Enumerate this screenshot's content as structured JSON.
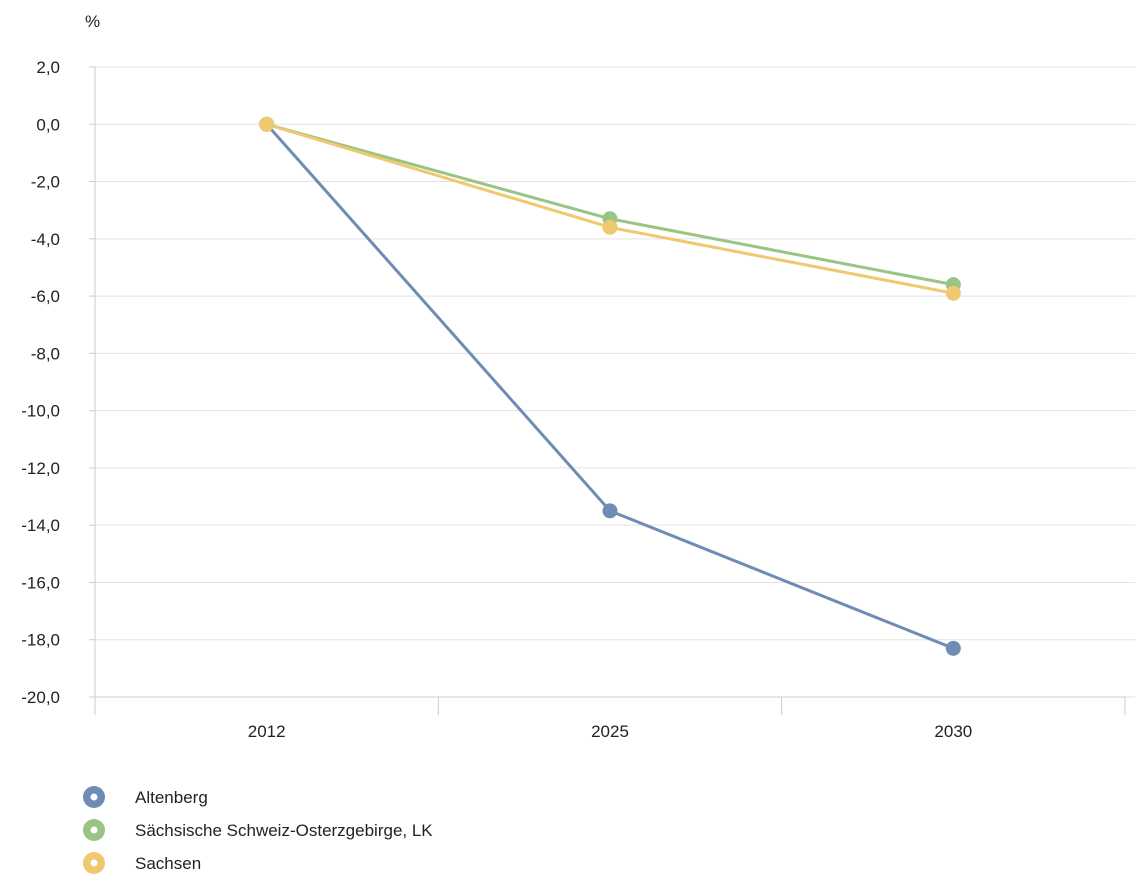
{
  "chart_data": {
    "type": "line",
    "ylabel": "%",
    "categories": [
      "2012",
      "2025",
      "2030"
    ],
    "ylim": [
      -20,
      2
    ],
    "yticks": [
      2,
      0,
      -2,
      -4,
      -6,
      -8,
      -10,
      -12,
      -14,
      -16,
      -18,
      -20
    ],
    "ytick_labels": [
      "2,0",
      "0,0",
      "-2,0",
      "-4,0",
      "-6,0",
      "-8,0",
      "-10,0",
      "-12,0",
      "-14,0",
      "-16,0",
      "-18,0",
      "-20,0"
    ],
    "grid": true,
    "legend_position": "bottom-left",
    "series": [
      {
        "name": "Altenberg",
        "values": [
          0.0,
          -13.5,
          -18.3
        ],
        "color": "#6f8db4"
      },
      {
        "name": "Sächsische Schweiz-Osterzgebirge, LK",
        "values": [
          0.0,
          -3.3,
          -5.6
        ],
        "color": "#99c483"
      },
      {
        "name": "Sachsen",
        "values": [
          0.0,
          -3.6,
          -5.9
        ],
        "color": "#f0c870"
      }
    ]
  }
}
